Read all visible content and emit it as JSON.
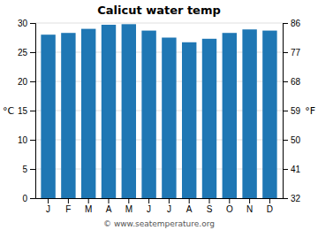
{
  "chart_data": {
    "type": "bar",
    "title": "Calicut water temp",
    "categories": [
      "J",
      "F",
      "M",
      "A",
      "M",
      "J",
      "J",
      "A",
      "S",
      "O",
      "N",
      "D"
    ],
    "values": [
      28.0,
      28.3,
      29.0,
      29.7,
      29.8,
      28.7,
      27.5,
      26.7,
      27.3,
      28.3,
      28.9,
      28.7
    ],
    "ylim": [
      0,
      30
    ],
    "yticks": [
      0,
      5,
      10,
      15,
      20,
      25,
      30
    ],
    "y2lim": [
      32,
      86
    ],
    "y2ticks": [
      32,
      41,
      50,
      59,
      68,
      77,
      86
    ],
    "y_label": "°C",
    "y2_label": "°F",
    "annotation": "© www.seatemperature.org",
    "grid": true
  }
}
